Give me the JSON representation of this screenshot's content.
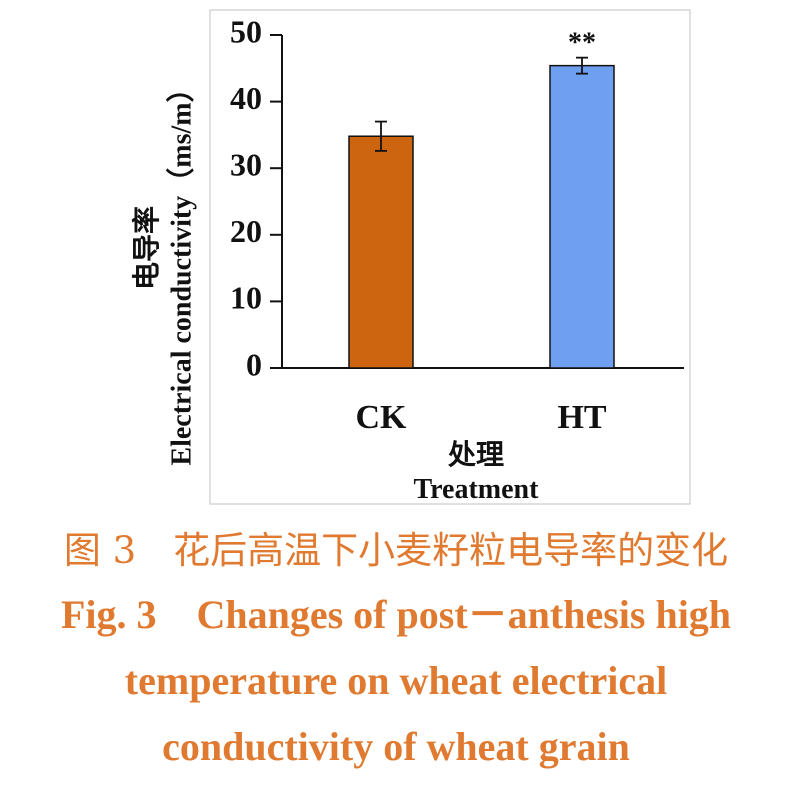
{
  "chart_data": {
    "type": "bar",
    "categories": [
      "CK",
      "HT"
    ],
    "values": [
      34.8,
      45.4
    ],
    "errors": [
      2.2,
      1.2
    ],
    "significance": [
      "",
      "**"
    ],
    "colors": [
      "#cc6410",
      "#6f9ff0"
    ],
    "ylim": [
      0,
      50
    ],
    "yticks": [
      0,
      10,
      20,
      30,
      40,
      50
    ],
    "ylabel_cn": "电导率",
    "ylabel_en": "Electrical conductivity（ms/m）",
    "xlabel_cn": "处理",
    "xlabel_en": "Treatment",
    "grid": false,
    "legend": "none"
  },
  "caption": {
    "cn": "图 3　花后高温下小麦籽粒电导率的变化",
    "en_line1": "Fig. 3　Changes of post－anthesis high",
    "en_line2": "temperature on wheat electrical",
    "en_line3": "conductivity of wheat grain",
    "color": "#e07a30"
  }
}
